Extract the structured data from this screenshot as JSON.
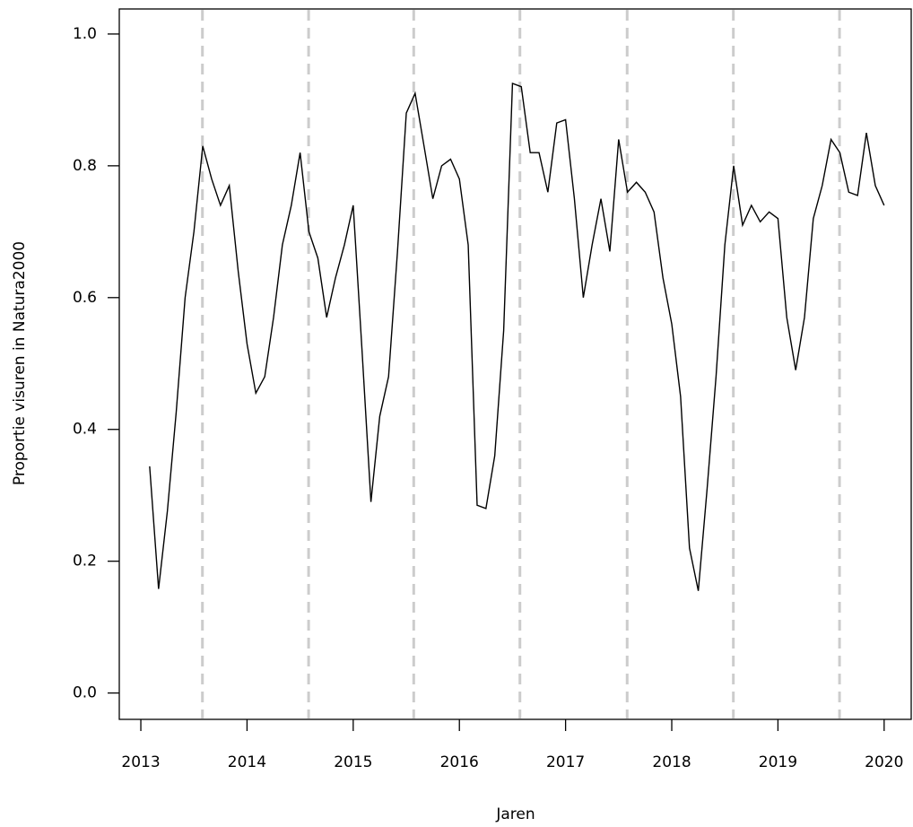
{
  "chart_data": {
    "type": "line",
    "x_label": "Jaren",
    "y_label": "Proportie visuren in Natura2000",
    "x": [
      2013.083,
      2013.167,
      2013.25,
      2013.333,
      2013.417,
      2013.5,
      2013.583,
      2013.667,
      2013.75,
      2013.833,
      2013.917,
      2014.0,
      2014.083,
      2014.167,
      2014.25,
      2014.333,
      2014.417,
      2014.5,
      2014.583,
      2014.667,
      2014.75,
      2014.833,
      2014.917,
      2015.0,
      2015.083,
      2015.167,
      2015.25,
      2015.333,
      2015.417,
      2015.5,
      2015.583,
      2015.667,
      2015.75,
      2015.833,
      2015.917,
      2016.0,
      2016.083,
      2016.167,
      2016.25,
      2016.333,
      2016.417,
      2016.5,
      2016.583,
      2016.667,
      2016.75,
      2016.833,
      2016.917,
      2017.0,
      2017.083,
      2017.167,
      2017.25,
      2017.333,
      2017.417,
      2017.5,
      2017.583,
      2017.667,
      2017.75,
      2017.833,
      2017.917,
      2018.0,
      2018.083,
      2018.167,
      2018.25,
      2018.333,
      2018.417,
      2018.5,
      2018.583,
      2018.667,
      2018.75,
      2018.833,
      2018.917,
      2019.0,
      2019.083,
      2019.167,
      2019.25,
      2019.333,
      2019.417,
      2019.5,
      2019.583,
      2019.667,
      2019.75,
      2019.833,
      2019.917,
      2020.0
    ],
    "series": [
      {
        "color": "#000000",
        "values": [
          0.344,
          0.158,
          0.276,
          0.426,
          0.6,
          0.7,
          0.83,
          0.78,
          0.74,
          0.77,
          0.64,
          0.53,
          0.455,
          0.48,
          0.57,
          0.68,
          0.74,
          0.82,
          0.7,
          0.66,
          0.57,
          0.63,
          0.68,
          0.74,
          0.52,
          0.29,
          0.42,
          0.48,
          0.67,
          0.88,
          0.91,
          0.83,
          0.75,
          0.8,
          0.81,
          0.78,
          0.68,
          0.285,
          0.28,
          0.36,
          0.55,
          0.925,
          0.92,
          0.82,
          0.82,
          0.76,
          0.865,
          0.87,
          0.75,
          0.6,
          0.68,
          0.75,
          0.67,
          0.84,
          0.76,
          0.775,
          0.76,
          0.73,
          0.63,
          0.56,
          0.45,
          0.22,
          0.155,
          0.31,
          0.48,
          0.68,
          0.8,
          0.71,
          0.74,
          0.715,
          0.73,
          0.72,
          0.57,
          0.49,
          0.57,
          0.72,
          0.77,
          0.84,
          0.82,
          0.76,
          0.755,
          0.85,
          0.77,
          0.74
        ]
      }
    ],
    "vlines": [
      2013.58,
      2014.58,
      2015.57,
      2016.57,
      2017.58,
      2018.58,
      2019.58
    ],
    "vline_color": "#cccccc",
    "xlim": [
      2012.797,
      2020.255
    ],
    "ylim": [
      -0.04,
      1.038
    ],
    "xticks": [
      2013,
      2014,
      2015,
      2016,
      2017,
      2018,
      2019,
      2020
    ],
    "yticks": [
      {
        "value": 0,
        "label": "0.0"
      },
      0.2,
      0.4,
      0.6,
      0.8,
      {
        "value": 1,
        "label": "1.0"
      }
    ]
  }
}
